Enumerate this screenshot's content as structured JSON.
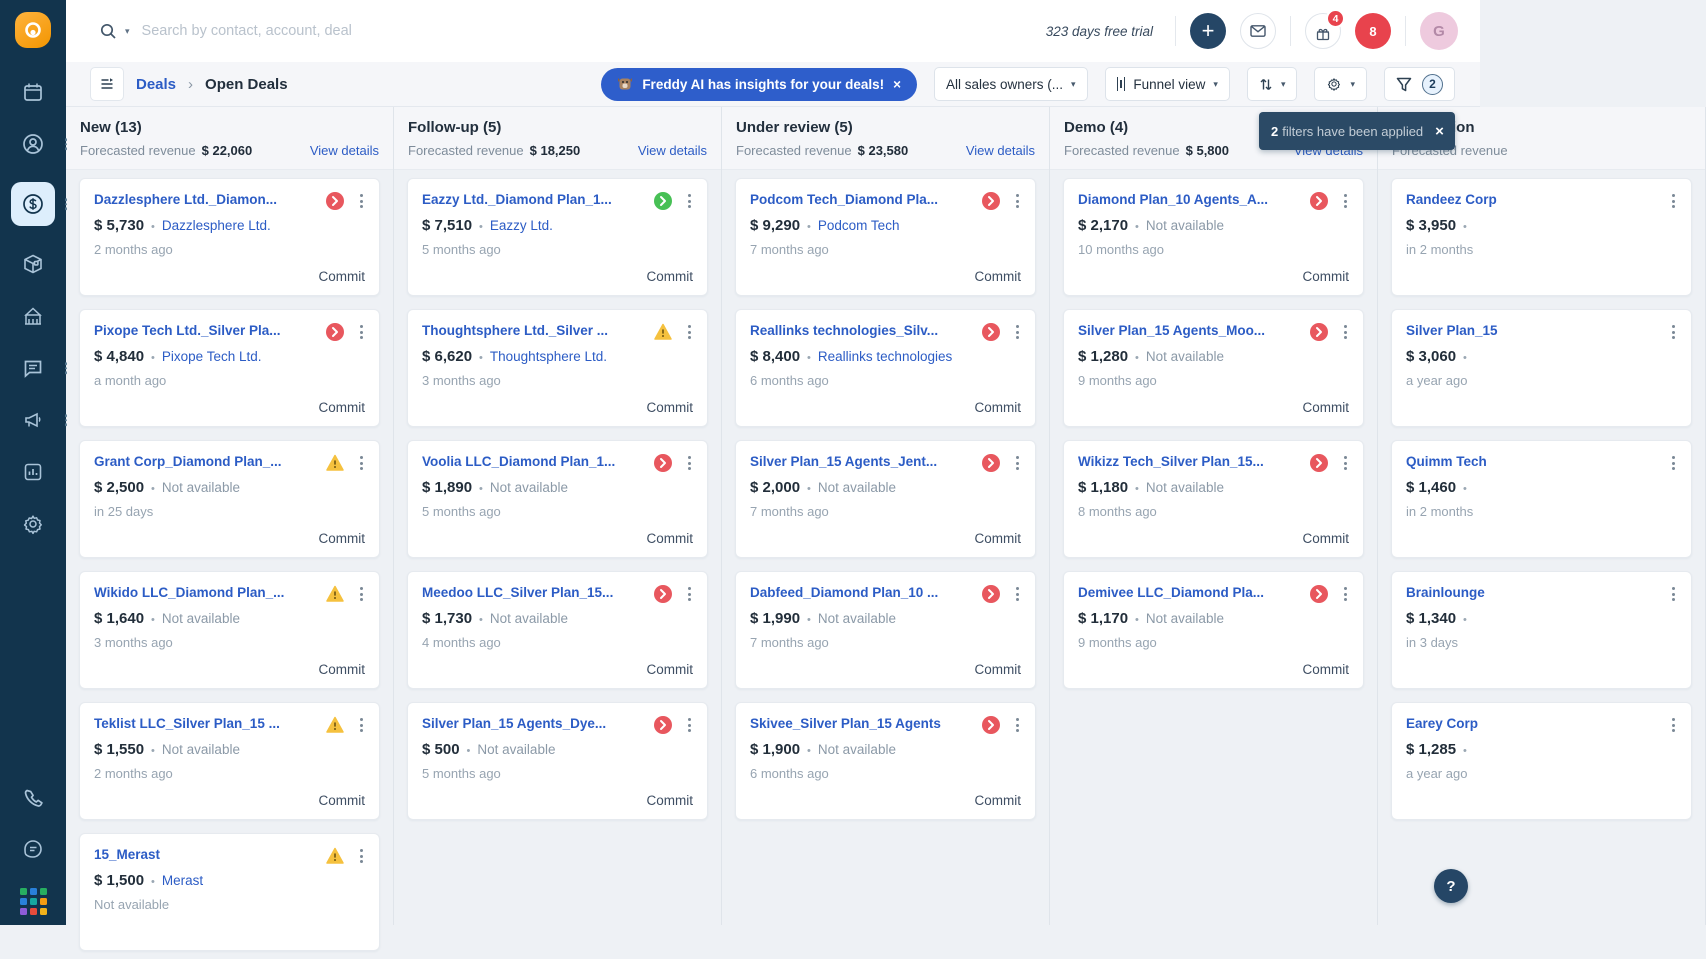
{
  "colors": {
    "accent_blue": "#2c5cc5",
    "sidebar_navy": "#12344d",
    "status_red": "#e8575e",
    "status_green": "#47c055",
    "status_warn": "#f5c13e",
    "badge_red": "#e8434d"
  },
  "glyphs": {
    "dot": "•",
    "caret": "▾",
    "crumb_sep": "›",
    "close": "×",
    "plus": "+",
    "question": "?"
  },
  "topbar": {
    "search_placeholder": "Search by contact, account, deal",
    "trial_text": "323 days free trial",
    "whats_new_badge": "4",
    "notifications_count": "8",
    "avatar_initial": "G"
  },
  "breadcrumb": {
    "section": "Deals",
    "page": "Open Deals"
  },
  "subheader": {
    "freddy_banner": "Freddy AI has insights for your deals!",
    "owners_dropdown": "All sales owners (...",
    "view_dropdown": "Funnel view",
    "filter_count": "2"
  },
  "toast": {
    "count": "2",
    "text": "filters have been applied"
  },
  "help_label": "?",
  "board": {
    "forecast_label": "Forecasted revenue",
    "view_details_label": "View details",
    "commit_label": "Commit",
    "columns": [
      {
        "title": "New (13)",
        "forecast": "$ 22,060",
        "view_details": true,
        "cards": [
          {
            "title": "Dazzlesphere Ltd._Diamon...",
            "amount": "$ 5,730",
            "account": "Dazzlesphere Ltd.",
            "account_link": true,
            "age": "2 months ago",
            "status": "red",
            "commit": true
          },
          {
            "title": "Pixope Tech Ltd._Silver Pla...",
            "amount": "$ 4,840",
            "account": "Pixope Tech Ltd.",
            "account_link": true,
            "age": "a month ago",
            "status": "red",
            "commit": true
          },
          {
            "title": "Grant Corp_Diamond Plan_...",
            "amount": "$ 2,500",
            "account": "Not available",
            "account_link": false,
            "age": "in 25 days",
            "status": "warn",
            "commit": true
          },
          {
            "title": "Wikido LLC_Diamond Plan_...",
            "amount": "$ 1,640",
            "account": "Not available",
            "account_link": false,
            "age": "3 months ago",
            "status": "warn",
            "commit": true
          },
          {
            "title": "Teklist LLC_Silver Plan_15 ...",
            "amount": "$ 1,550",
            "account": "Not available",
            "account_link": false,
            "age": "2 months ago",
            "status": "warn",
            "commit": true
          },
          {
            "title": "15_Merast",
            "amount": "$ 1,500",
            "account": "Merast",
            "account_link": true,
            "age": "Not available",
            "status": "warn",
            "commit": false
          }
        ]
      },
      {
        "title": "Follow-up (5)",
        "forecast": "$ 18,250",
        "view_details": true,
        "cards": [
          {
            "title": "Eazzy Ltd._Diamond Plan_1...",
            "amount": "$ 7,510",
            "account": "Eazzy Ltd.",
            "account_link": true,
            "age": "5 months ago",
            "status": "green",
            "commit": true
          },
          {
            "title": "Thoughtsphere Ltd._Silver ...",
            "amount": "$ 6,620",
            "account": "Thoughtsphere Ltd.",
            "account_link": true,
            "age": "3 months ago",
            "status": "warn",
            "commit": true
          },
          {
            "title": "Voolia LLC_Diamond Plan_1...",
            "amount": "$ 1,890",
            "account": "Not available",
            "account_link": false,
            "age": "5 months ago",
            "status": "red",
            "commit": true
          },
          {
            "title": "Meedoo LLC_Silver Plan_15...",
            "amount": "$ 1,730",
            "account": "Not available",
            "account_link": false,
            "age": "4 months ago",
            "status": "red",
            "commit": true
          },
          {
            "title": "Silver Plan_15 Agents_Dye...",
            "amount": "$ 500",
            "account": "Not available",
            "account_link": false,
            "age": "5 months ago",
            "status": "red",
            "commit": true
          }
        ]
      },
      {
        "title": "Under review (5)",
        "forecast": "$ 23,580",
        "view_details": true,
        "cards": [
          {
            "title": "Podcom Tech_Diamond Pla...",
            "amount": "$ 9,290",
            "account": "Podcom Tech",
            "account_link": true,
            "age": "7 months ago",
            "status": "red",
            "commit": true
          },
          {
            "title": "Reallinks technologies_Silv...",
            "amount": "$ 8,400",
            "account": "Reallinks technologies",
            "account_link": true,
            "age": "6 months ago",
            "status": "red",
            "commit": true
          },
          {
            "title": "Silver Plan_15 Agents_Jent...",
            "amount": "$ 2,000",
            "account": "Not available",
            "account_link": false,
            "age": "7 months ago",
            "status": "red",
            "commit": true
          },
          {
            "title": "Dabfeed_Diamond Plan_10 ...",
            "amount": "$ 1,990",
            "account": "Not available",
            "account_link": false,
            "age": "7 months ago",
            "status": "red",
            "commit": true
          },
          {
            "title": "Skivee_Silver Plan_15 Agents",
            "amount": "$ 1,900",
            "account": "Not available",
            "account_link": false,
            "age": "6 months ago",
            "status": "red",
            "commit": true
          }
        ]
      },
      {
        "title": "Demo (4)",
        "forecast": "$ 5,800",
        "view_details": true,
        "cards": [
          {
            "title": "Diamond Plan_10 Agents_A...",
            "amount": "$ 2,170",
            "account": "Not available",
            "account_link": false,
            "age": "10 months ago",
            "status": "red",
            "commit": true
          },
          {
            "title": "Silver Plan_15 Agents_Moo...",
            "amount": "$ 1,280",
            "account": "Not available",
            "account_link": false,
            "age": "9 months ago",
            "status": "red",
            "commit": true
          },
          {
            "title": "Wikizz Tech_Silver Plan_15...",
            "amount": "$ 1,180",
            "account": "Not available",
            "account_link": false,
            "age": "8 months ago",
            "status": "red",
            "commit": true
          },
          {
            "title": "Demivee LLC_Diamond Pla...",
            "amount": "$ 1,170",
            "account": "Not available",
            "account_link": false,
            "age": "9 months ago",
            "status": "red",
            "commit": true
          }
        ]
      },
      {
        "title": "Negotiation",
        "forecast": "",
        "view_details": false,
        "cards": [
          {
            "title": "Randeez Corp",
            "amount": "$ 3,950",
            "account": "",
            "account_link": false,
            "age": "in 2 months",
            "status": null,
            "commit": false
          },
          {
            "title": "Silver Plan_15",
            "amount": "$ 3,060",
            "account": "",
            "account_link": false,
            "age": "a year ago",
            "status": null,
            "commit": false
          },
          {
            "title": "Quimm Tech",
            "amount": "$ 1,460",
            "account": "",
            "account_link": false,
            "age": "in 2 months",
            "status": null,
            "commit": false
          },
          {
            "title": "Brainlounge",
            "amount": "$ 1,340",
            "account": "",
            "account_link": false,
            "age": "in 3 days",
            "status": null,
            "commit": false
          },
          {
            "title": "Earey Corp",
            "amount": "$ 1,285",
            "account": "",
            "account_link": false,
            "age": "a year ago",
            "status": null,
            "commit": false
          }
        ]
      }
    ]
  }
}
